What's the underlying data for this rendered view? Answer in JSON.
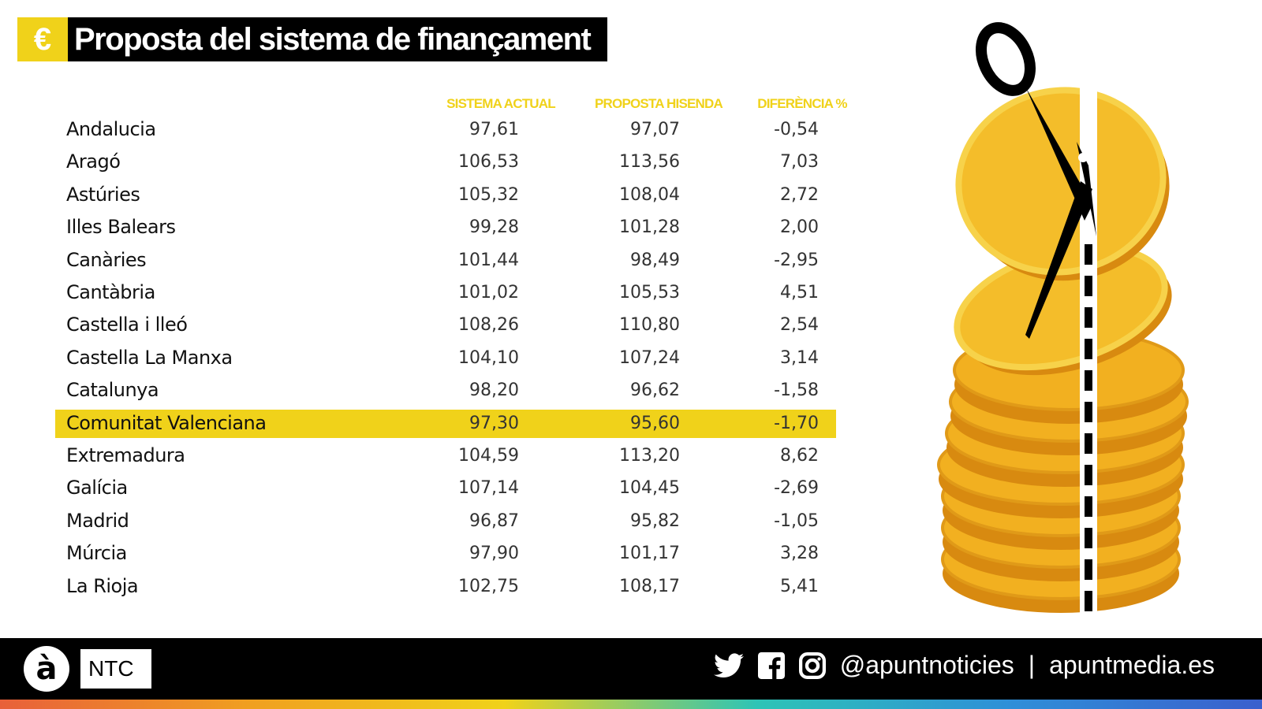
{
  "title": {
    "icon": "euro-icon",
    "symbol": "€",
    "text": "Proposta del sistema de finançament"
  },
  "colors": {
    "accent": "#f0d21a",
    "footer": "#000000",
    "text": "#222222"
  },
  "chart_data": {
    "type": "table",
    "columns": [
      "",
      "SISTEMA ACTUAL",
      "PROPOSTA HISENDA",
      "DIFERÈNCIA %"
    ],
    "highlighted_row": "Comunitat Valenciana",
    "rows": [
      {
        "name": "Andalucia",
        "actual": "97,61",
        "proposta": "97,07",
        "diff": "-0,54"
      },
      {
        "name": "Aragó",
        "actual": "106,53",
        "proposta": "113,56",
        "diff": "7,03"
      },
      {
        "name": "Astúries",
        "actual": "105,32",
        "proposta": "108,04",
        "diff": "2,72"
      },
      {
        "name": "Illes Balears",
        "actual": "99,28",
        "proposta": "101,28",
        "diff": "2,00"
      },
      {
        "name": "Canàries",
        "actual": "101,44",
        "proposta": "98,49",
        "diff": "-2,95"
      },
      {
        "name": "Cantàbria",
        "actual": "101,02",
        "proposta": "105,53",
        "diff": "4,51"
      },
      {
        "name": "Castella i lleó",
        "actual": "108,26",
        "proposta": "110,80",
        "diff": "2,54"
      },
      {
        "name": "Castella La Manxa",
        "actual": "104,10",
        "proposta": "107,24",
        "diff": "3,14"
      },
      {
        "name": "Catalunya",
        "actual": "98,20",
        "proposta": "96,62",
        "diff": "-1,58"
      },
      {
        "name": "Comunitat Valenciana",
        "actual": "97,30",
        "proposta": "95,60",
        "diff": "-1,70"
      },
      {
        "name": "Extremadura",
        "actual": "104,59",
        "proposta": "113,20",
        "diff": "8,62"
      },
      {
        "name": "Galícia",
        "actual": "107,14",
        "proposta": "104,45",
        "diff": "-2,69"
      },
      {
        "name": "Madrid",
        "actual": "96,87",
        "proposta": "95,82",
        "diff": "-1,05"
      },
      {
        "name": "Múrcia",
        "actual": "97,90",
        "proposta": "101,17",
        "diff": "3,28"
      },
      {
        "name": "La Rioja",
        "actual": "102,75",
        "proposta": "108,17",
        "diff": "5,41"
      }
    ]
  },
  "footer": {
    "logo_letter": "à",
    "logo_text": "NTC",
    "icons": [
      "twitter-icon",
      "facebook-icon",
      "instagram-icon"
    ],
    "handle": "@apuntnoticies",
    "separator": "|",
    "website": "apuntmedia.es"
  }
}
